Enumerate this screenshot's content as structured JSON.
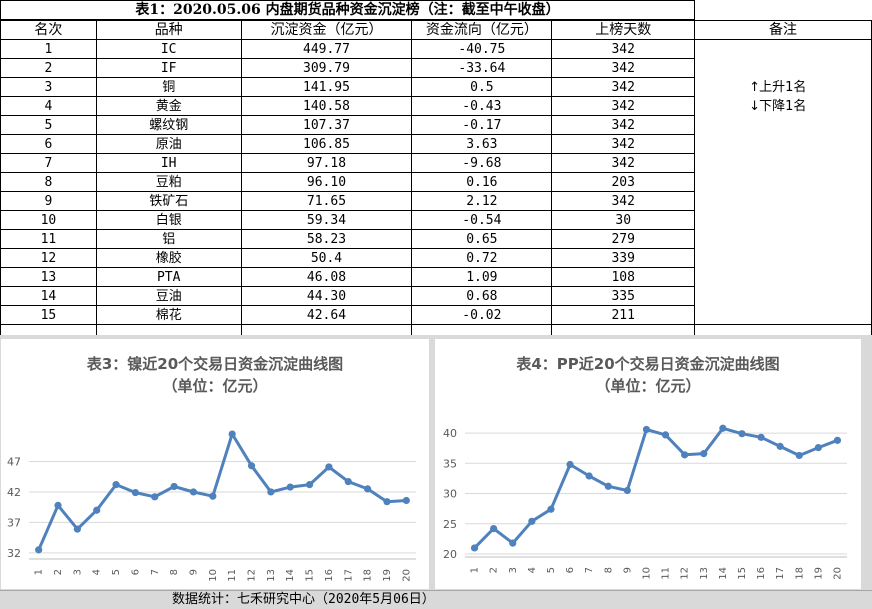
{
  "table": {
    "title": "表1：2020.05.06 内盘期货品种资金沉淀榜（注：截至中午收盘）",
    "headers": [
      "名次",
      "品种",
      "沉淀资金（亿元）",
      "资金流向（亿元）",
      "上榜天数",
      "备注"
    ],
    "rows": [
      [
        "1",
        "IC",
        "449.77",
        "-40.75",
        "342"
      ],
      [
        "2",
        "IF",
        "309.79",
        "-33.64",
        "342"
      ],
      [
        "3",
        "铜",
        "141.95",
        "0.5",
        "342"
      ],
      [
        "4",
        "黄金",
        "140.58",
        "-0.43",
        "342"
      ],
      [
        "5",
        "螺纹钢",
        "107.37",
        "-0.17",
        "342"
      ],
      [
        "6",
        "原油",
        "106.85",
        "3.63",
        "342"
      ],
      [
        "7",
        "IH",
        "97.18",
        "-9.68",
        "342"
      ],
      [
        "8",
        "豆粕",
        "96.10",
        "0.16",
        "203"
      ],
      [
        "9",
        "铁矿石",
        "71.65",
        "2.12",
        "342"
      ],
      [
        "10",
        "白银",
        "59.34",
        "-0.54",
        "30"
      ],
      [
        "11",
        "铝",
        "58.23",
        "0.65",
        "279"
      ],
      [
        "12",
        "橡胶",
        "50.4",
        "0.72",
        "339"
      ],
      [
        "13",
        "PTA",
        "46.08",
        "1.09",
        "108"
      ],
      [
        "14",
        "豆油",
        "44.30",
        "0.68",
        "335"
      ],
      [
        "15",
        "棉花",
        "42.64",
        "-0.02",
        "211"
      ]
    ],
    "notes": [
      {
        "arrow": "↑",
        "text": "上升1名"
      },
      {
        "arrow": "↓",
        "text": "下降1名"
      }
    ]
  },
  "chart_data": [
    {
      "type": "line",
      "title": "表3：镍近20个交易日资金沉淀曲线图",
      "subtitle": "（单位：亿元）",
      "categories": [
        "1",
        "2",
        "3",
        "4",
        "5",
        "6",
        "7",
        "8",
        "9",
        "10",
        "11",
        "12",
        "13",
        "14",
        "15",
        "16",
        "17",
        "18",
        "19",
        "20"
      ],
      "series": [
        {
          "values": [
            32.5,
            39.8,
            35.9,
            39.0,
            43.2,
            41.9,
            41.2,
            42.9,
            42.0,
            41.3,
            51.5,
            46.3,
            42.0,
            42.8,
            43.2,
            46.1,
            43.7,
            42.5,
            40.4,
            40.6
          ]
        }
      ],
      "yticks": [
        32,
        37,
        42,
        47
      ],
      "ylim": [
        31,
        52
      ],
      "color": "#4f81bd",
      "grid": true
    },
    {
      "type": "line",
      "title": "表4：PP近20个交易日资金沉淀曲线图",
      "subtitle": "（单位：亿元）",
      "categories": [
        "1",
        "2",
        "3",
        "4",
        "5",
        "6",
        "7",
        "8",
        "9",
        "10",
        "11",
        "12",
        "13",
        "14",
        "15",
        "16",
        "17",
        "18",
        "19",
        "20"
      ],
      "series": [
        {
          "values": [
            21.0,
            24.2,
            21.8,
            25.4,
            27.4,
            34.8,
            32.9,
            31.2,
            30.5,
            40.6,
            39.7,
            36.4,
            36.6,
            40.8,
            39.9,
            39.3,
            37.8,
            36.3,
            37.6,
            38.8
          ]
        }
      ],
      "yticks": [
        20,
        25,
        30,
        35,
        40
      ],
      "ylim": [
        19.5,
        42
      ],
      "color": "#4f81bd",
      "grid": true
    }
  ],
  "footer": "数据统计：七禾研究中心（2020年5月06日）"
}
